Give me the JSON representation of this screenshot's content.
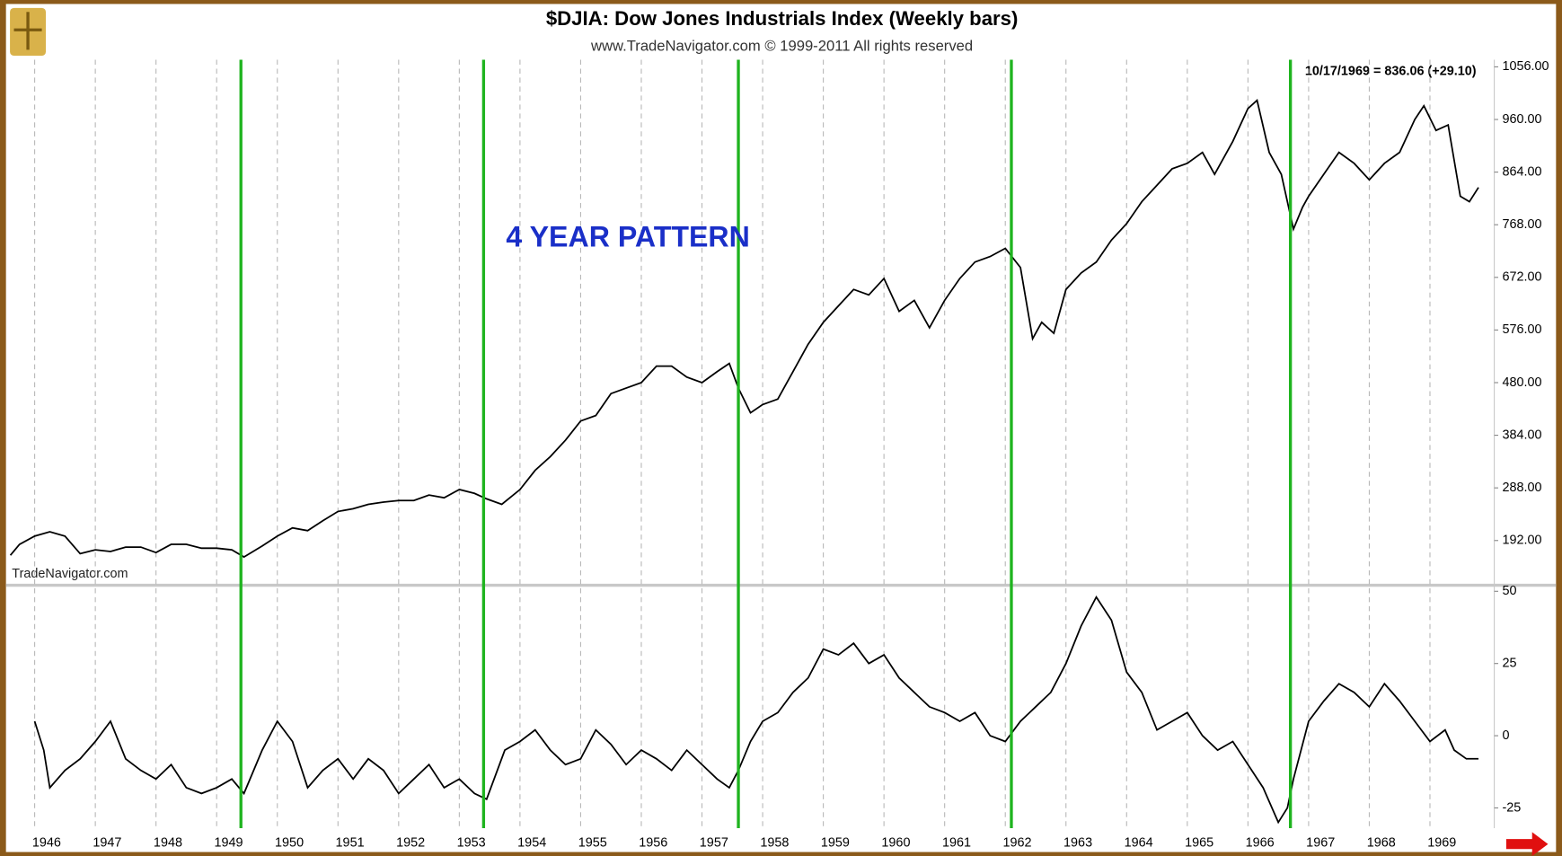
{
  "chart_data": [
    {
      "type": "line",
      "title": "$DJIA:  Dow Jones Industrials Index  (Weekly bars)",
      "subtitle": "www.TradeNavigator.com © 1999-2011 All rights reserved",
      "annotation": "4 YEAR PATTERN",
      "watermark": "TradeNavigator.com",
      "last_value_label": "10/17/1969 = 836.06 (+29.10)",
      "color": "#000000",
      "x": [
        1945.6,
        1945.75,
        1946.0,
        1946.25,
        1946.5,
        1946.75,
        1947.0,
        1947.25,
        1947.5,
        1947.75,
        1948.0,
        1948.25,
        1948.5,
        1948.75,
        1949.0,
        1949.25,
        1949.45,
        1949.75,
        1950.0,
        1950.25,
        1950.5,
        1950.75,
        1951.0,
        1951.25,
        1951.5,
        1951.75,
        1952.0,
        1952.25,
        1952.5,
        1952.75,
        1953.0,
        1953.25,
        1953.45,
        1953.7,
        1954.0,
        1954.25,
        1954.5,
        1954.75,
        1955.0,
        1955.25,
        1955.5,
        1955.75,
        1956.0,
        1956.25,
        1956.5,
        1956.75,
        1957.0,
        1957.25,
        1957.45,
        1957.6,
        1957.8,
        1958.0,
        1958.25,
        1958.5,
        1958.75,
        1959.0,
        1959.25,
        1959.5,
        1959.75,
        1960.0,
        1960.25,
        1960.5,
        1960.75,
        1961.0,
        1961.25,
        1961.5,
        1961.75,
        1962.0,
        1962.25,
        1962.45,
        1962.6,
        1962.8,
        1963.0,
        1963.25,
        1963.5,
        1963.75,
        1964.0,
        1964.25,
        1964.5,
        1964.75,
        1965.0,
        1965.25,
        1965.45,
        1965.75,
        1966.0,
        1966.15,
        1966.35,
        1966.55,
        1966.75,
        1966.9,
        1967.0,
        1967.25,
        1967.5,
        1967.75,
        1968.0,
        1968.25,
        1968.5,
        1968.75,
        1968.9,
        1969.1,
        1969.3,
        1969.5,
        1969.65,
        1969.8
      ],
      "values": [
        165,
        185,
        200,
        208,
        200,
        168,
        175,
        172,
        180,
        180,
        170,
        185,
        185,
        178,
        178,
        175,
        162,
        182,
        200,
        215,
        210,
        228,
        245,
        250,
        258,
        262,
        265,
        265,
        275,
        270,
        285,
        278,
        268,
        258,
        285,
        320,
        345,
        375,
        410,
        420,
        460,
        470,
        480,
        510,
        510,
        490,
        480,
        500,
        515,
        470,
        425,
        440,
        450,
        500,
        550,
        590,
        620,
        650,
        640,
        670,
        610,
        630,
        580,
        630,
        670,
        700,
        710,
        725,
        690,
        560,
        590,
        570,
        650,
        680,
        700,
        740,
        770,
        810,
        840,
        870,
        880,
        900,
        860,
        920,
        980,
        995,
        900,
        860,
        760,
        800,
        820,
        860,
        900,
        880,
        850,
        880,
        900,
        960,
        985,
        940,
        950,
        820,
        810,
        836
      ],
      "xlim": [
        1945.56,
        1970.06
      ],
      "ylim": [
        114,
        1069
      ],
      "yticks": [
        {
          "value": 192,
          "label": "192.00"
        },
        {
          "value": 288,
          "label": "288.00"
        },
        {
          "value": 384,
          "label": "384.00"
        },
        {
          "value": 480,
          "label": "480.00"
        },
        {
          "value": 576,
          "label": "576.00"
        },
        {
          "value": 672,
          "label": "672.00"
        },
        {
          "value": 768,
          "label": "768.00"
        },
        {
          "value": 864,
          "label": "864.00"
        },
        {
          "value": 960,
          "label": "960.00"
        },
        {
          "value": 1056,
          "label": "1056.00"
        }
      ],
      "cycle_lines": [
        1949.4,
        1953.4,
        1957.6,
        1962.1,
        1966.7
      ],
      "cycle_color": "#1fb41f"
    },
    {
      "type": "line",
      "color": "#000000",
      "x": [
        1946.0,
        1946.15,
        1946.25,
        1946.5,
        1946.75,
        1947.0,
        1947.25,
        1947.5,
        1947.75,
        1948.0,
        1948.25,
        1948.5,
        1948.75,
        1949.0,
        1949.25,
        1949.45,
        1949.75,
        1950.0,
        1950.25,
        1950.5,
        1950.75,
        1951.0,
        1951.25,
        1951.5,
        1951.75,
        1952.0,
        1952.25,
        1952.5,
        1952.75,
        1953.0,
        1953.25,
        1953.45,
        1953.75,
        1954.0,
        1954.25,
        1954.5,
        1954.75,
        1955.0,
        1955.25,
        1955.5,
        1955.75,
        1956.0,
        1956.25,
        1956.5,
        1956.75,
        1957.0,
        1957.25,
        1957.45,
        1957.6,
        1957.8,
        1958.0,
        1958.25,
        1958.5,
        1958.75,
        1959.0,
        1959.25,
        1959.5,
        1959.75,
        1960.0,
        1960.25,
        1960.5,
        1960.75,
        1961.0,
        1961.25,
        1961.5,
        1961.75,
        1962.0,
        1962.25,
        1962.5,
        1962.75,
        1963.0,
        1963.25,
        1963.5,
        1963.75,
        1964.0,
        1964.25,
        1964.5,
        1964.75,
        1965.0,
        1965.25,
        1965.5,
        1965.75,
        1966.0,
        1966.25,
        1966.5,
        1966.65,
        1966.75,
        1967.0,
        1967.25,
        1967.5,
        1967.75,
        1968.0,
        1968.25,
        1968.5,
        1968.75,
        1969.0,
        1969.25,
        1969.4,
        1969.6,
        1969.8
      ],
      "values": [
        5,
        -5,
        -18,
        -12,
        -8,
        -2,
        5,
        -8,
        -12,
        -15,
        -10,
        -18,
        -20,
        -18,
        -15,
        -20,
        -5,
        5,
        -2,
        -18,
        -12,
        -8,
        -15,
        -8,
        -12,
        -20,
        -15,
        -10,
        -18,
        -15,
        -20,
        -22,
        -5,
        -2,
        2,
        -5,
        -10,
        -8,
        2,
        -3,
        -10,
        -5,
        -8,
        -12,
        -5,
        -10,
        -15,
        -18,
        -12,
        -2,
        5,
        8,
        15,
        20,
        30,
        28,
        32,
        25,
        28,
        20,
        15,
        10,
        8,
        5,
        8,
        0,
        -2,
        5,
        10,
        15,
        25,
        38,
        48,
        40,
        22,
        15,
        2,
        5,
        8,
        0,
        -5,
        -2,
        -10,
        -18,
        -30,
        -25,
        -15,
        5,
        12,
        18,
        15,
        10,
        18,
        12,
        5,
        -2,
        2,
        -5,
        -8,
        -8
      ],
      "xlim": [
        1945.56,
        1970.06
      ],
      "ylim": [
        -32,
        51.4
      ],
      "yticks": [
        -25,
        0,
        25,
        50
      ],
      "xticks": [
        1946,
        1947,
        1948,
        1949,
        1950,
        1951,
        1952,
        1953,
        1954,
        1955,
        1956,
        1957,
        1958,
        1959,
        1960,
        1961,
        1962,
        1963,
        1964,
        1965,
        1966,
        1967,
        1968,
        1969
      ],
      "grid": true
    }
  ]
}
